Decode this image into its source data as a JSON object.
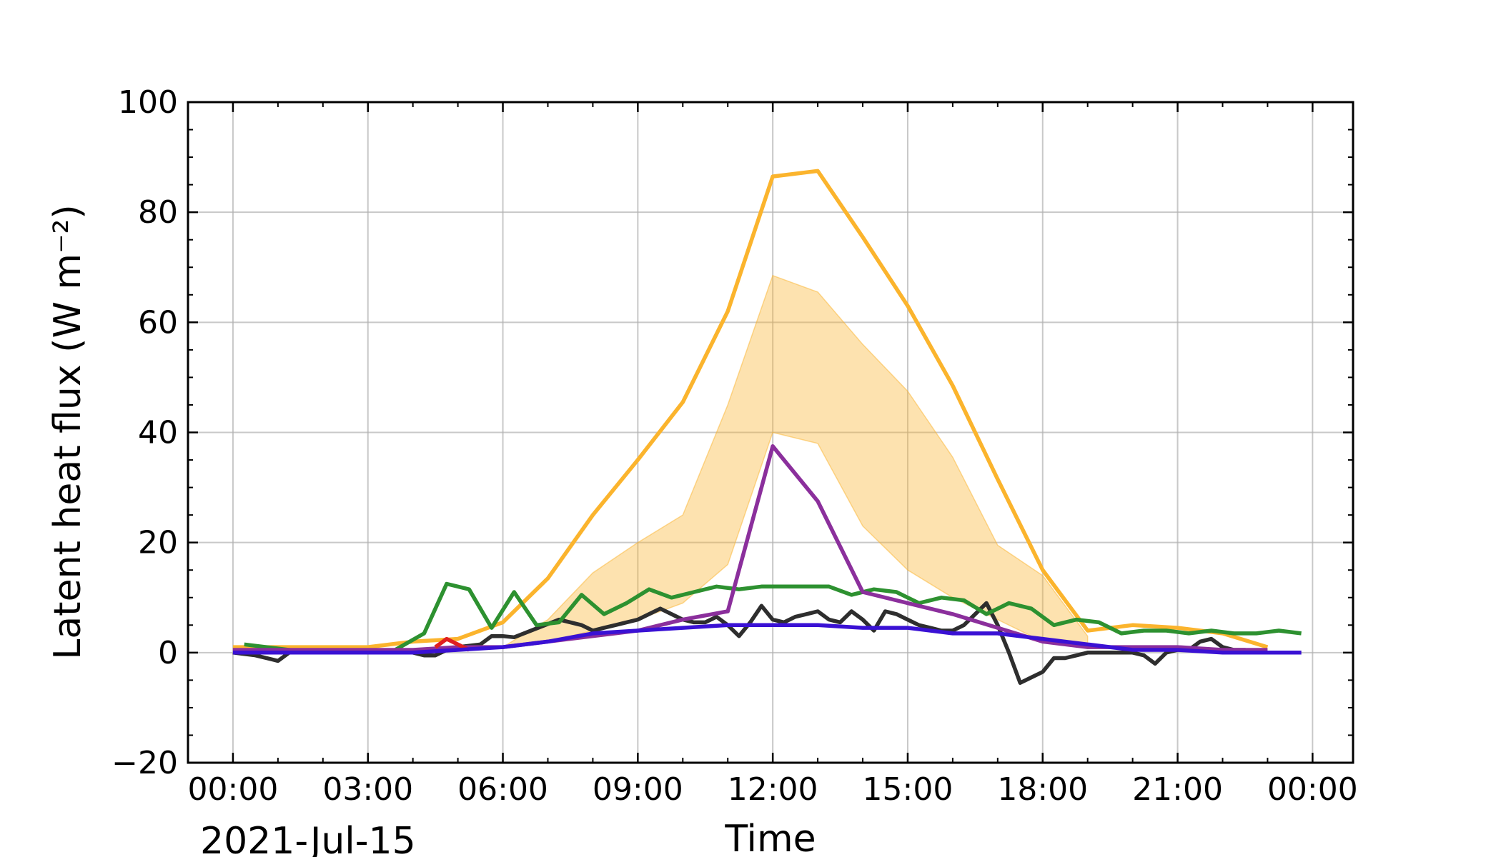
{
  "chart_data": {
    "type": "line",
    "title": "",
    "xlabel": "Time",
    "ylabel": "Latent heat flux (W m⁻²)",
    "date_label": "2021-Jul-15",
    "x_unit": "hours",
    "xlim": [
      -1,
      24.9
    ],
    "ylim": [
      -20,
      100
    ],
    "grid": true,
    "x_ticks": [
      0,
      3,
      6,
      9,
      12,
      15,
      18,
      21,
      24
    ],
    "x_tick_labels": [
      "00:00",
      "03:00",
      "06:00",
      "09:00",
      "12:00",
      "15:00",
      "18:00",
      "21:00",
      "00:00"
    ],
    "y_ticks": [
      -20,
      0,
      20,
      40,
      60,
      80,
      100
    ],
    "y_tick_labels": [
      "−20",
      "0",
      "20",
      "40",
      "60",
      "80",
      "100"
    ],
    "band": {
      "color": "#fbb42d",
      "opacity": 0.38,
      "x": [
        6,
        7,
        8,
        9,
        10,
        11,
        12,
        13,
        14,
        15,
        16,
        17,
        18,
        19
      ],
      "lower": [
        1,
        2,
        4,
        6,
        9,
        16,
        40,
        38,
        23,
        15,
        10,
        6,
        2,
        1
      ],
      "upper": [
        1,
        6,
        14.5,
        20,
        25,
        45,
        68.5,
        65.5,
        56,
        47.5,
        35.5,
        19.5,
        14,
        3
      ]
    },
    "series": [
      {
        "color": "#fbb42d",
        "x": [
          0,
          1,
          2,
          3,
          4,
          5,
          6,
          7,
          8,
          9,
          10,
          11,
          12,
          13,
          14,
          15,
          16,
          17,
          18,
          19,
          20,
          21,
          22,
          23
        ],
        "y": [
          1,
          1,
          1,
          1,
          2,
          2.5,
          5.5,
          13.5,
          25,
          35,
          45.5,
          62,
          86.5,
          87.5,
          75.5,
          63,
          48.5,
          31.5,
          15,
          4,
          5,
          4.5,
          3.5,
          1
        ]
      },
      {
        "color": "#2e2e2e",
        "x": [
          0,
          0.5,
          1,
          1.25,
          1.75,
          2,
          2.5,
          3,
          3.5,
          4,
          4.25,
          4.5,
          4.75,
          5,
          5.5,
          5.75,
          6,
          6.25,
          7.25,
          7.5,
          7.75,
          8,
          8.25,
          8.5,
          8.75,
          9,
          9.25,
          9.5,
          9.75,
          10,
          10.25,
          10.5,
          10.75,
          11,
          11.25,
          11.5,
          11.75,
          12,
          12.25,
          12.5,
          12.75,
          13,
          13.25,
          13.5,
          13.75,
          14,
          14.25,
          14.5,
          14.75,
          15,
          15.25,
          15.5,
          15.75,
          16,
          16.25,
          16.5,
          16.75,
          17,
          17.25,
          17.5,
          17.75,
          18,
          18.25,
          18.5,
          18.75,
          19,
          19.25,
          19.5,
          19.75,
          20,
          20.25,
          20.5,
          20.75,
          21,
          21.25,
          21.5,
          21.75,
          22,
          22.25,
          22.5,
          22.75,
          23,
          23.25,
          23.5,
          23.75
        ],
        "y": [
          0,
          -0.5,
          -1.5,
          0,
          0,
          0,
          0,
          0,
          0,
          0,
          -0.5,
          -0.5,
          0.5,
          1,
          1.5,
          3,
          3,
          2.8,
          6,
          5.5,
          5,
          4,
          4.5,
          5,
          5.5,
          6,
          7,
          8,
          7,
          6,
          5.5,
          5.5,
          6.5,
          5,
          3,
          5.5,
          8.5,
          6,
          5.5,
          6.5,
          7,
          7.5,
          6,
          5.5,
          7.5,
          6,
          4,
          7.5,
          7,
          6,
          5,
          4.5,
          4,
          4,
          5,
          7,
          9,
          5,
          0,
          -5.5,
          -4.5,
          -3.5,
          -1,
          -1,
          -0.5,
          0,
          0,
          0,
          0,
          0,
          -0.5,
          -2,
          0,
          0.5,
          0.5,
          2,
          2.5,
          1,
          0.5,
          0.5,
          0,
          0,
          0,
          0,
          0
        ]
      },
      {
        "color": "#2d9130",
        "x": [
          0.25,
          1.75,
          3.5,
          4.25,
          4.75,
          5.25,
          5.75,
          6.25,
          6.75,
          7.25,
          7.75,
          8.25,
          8.75,
          9.25,
          9.75,
          10.25,
          10.75,
          11.25,
          11.75,
          12.25,
          12.75,
          13.25,
          13.75,
          14.25,
          14.75,
          15.25,
          15.75,
          16.25,
          16.75,
          17.25,
          17.75,
          18.25,
          18.75,
          19.25,
          19.75,
          20.25,
          20.75,
          21.25,
          21.75,
          22.25,
          22.75,
          23.25,
          23.75
        ],
        "y": [
          1.5,
          0,
          0,
          3.5,
          12.5,
          11.5,
          4.5,
          11,
          5,
          5.5,
          10.5,
          7,
          9,
          11.5,
          10,
          11,
          12,
          11.5,
          12,
          12,
          12,
          12,
          10.5,
          11.5,
          11,
          9,
          10,
          9.5,
          7,
          9,
          8,
          5,
          6,
          5.5,
          3.5,
          4,
          4,
          3.5,
          4,
          3.5,
          3.5,
          4,
          3.5
        ]
      },
      {
        "color": "#8b2f9c",
        "x": [
          0,
          1,
          2,
          3,
          4,
          5,
          6,
          7,
          8,
          9,
          10,
          11,
          12,
          13,
          14,
          15,
          16,
          17,
          18,
          19,
          20,
          21,
          22,
          23
        ],
        "y": [
          0.5,
          0.5,
          0.5,
          0.5,
          0.5,
          1,
          1,
          2,
          3,
          4,
          6,
          7.5,
          37.5,
          27.5,
          11,
          9,
          7,
          4.5,
          2,
          1,
          1,
          1,
          0.5,
          0.5
        ]
      },
      {
        "color": "#e02020",
        "x": [
          4.5,
          4.75,
          5,
          5.25
        ],
        "y": [
          1,
          2.5,
          1.5,
          0.5
        ]
      },
      {
        "color": "#3a11d4",
        "x": [
          0,
          1,
          2,
          3,
          4,
          5,
          6,
          7,
          8,
          9,
          10,
          11,
          12,
          13,
          14,
          15,
          16,
          17,
          18,
          19,
          20,
          21,
          22,
          23,
          23.75
        ],
        "y": [
          0,
          0,
          0,
          0,
          0,
          0.5,
          1,
          2,
          3.5,
          4,
          4.5,
          5,
          5,
          5,
          4.5,
          4.5,
          3.5,
          3.5,
          2.5,
          1.5,
          0.5,
          0.5,
          0,
          0,
          0
        ]
      }
    ]
  }
}
